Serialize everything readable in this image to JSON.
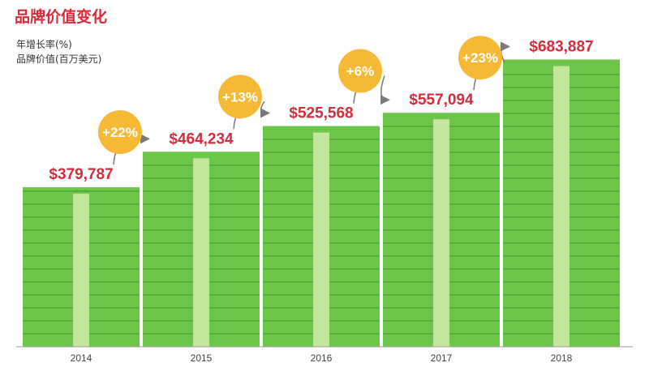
{
  "header": {
    "title": "品牌价值变化",
    "legend_growth": "年增长率(%)",
    "legend_value": "品牌价值(百万美元)"
  },
  "chart_data": {
    "type": "bar",
    "title": "品牌价值变化",
    "categories": [
      "2014",
      "2015",
      "2016",
      "2017",
      "2018"
    ],
    "series": [
      {
        "name": "品牌价值(百万美元)",
        "values": [
          379787,
          464234,
          525568,
          557094,
          683887
        ]
      }
    ],
    "value_labels": [
      "$379,787",
      "$464,234",
      "$525,568",
      "$557,094",
      "$683,887"
    ],
    "growth_labels": [
      "+22%",
      "+13%",
      "+6%",
      "+23%"
    ],
    "growth_values": [
      22,
      13,
      6,
      23
    ],
    "ylim": [
      0,
      760000
    ],
    "grid": false,
    "xlabel": "",
    "ylabel": ""
  },
  "colors": {
    "title_red": "#d72a3a",
    "value_red": "#d72a3a",
    "bill_green": "#6cc64a",
    "bill_green_dark": "#53ad37",
    "bill_band": "#cfeaa6",
    "growth_circle": "#f6b935",
    "arrow_gray": "#7a7a7a",
    "axis_gray": "#9a9a9a"
  }
}
